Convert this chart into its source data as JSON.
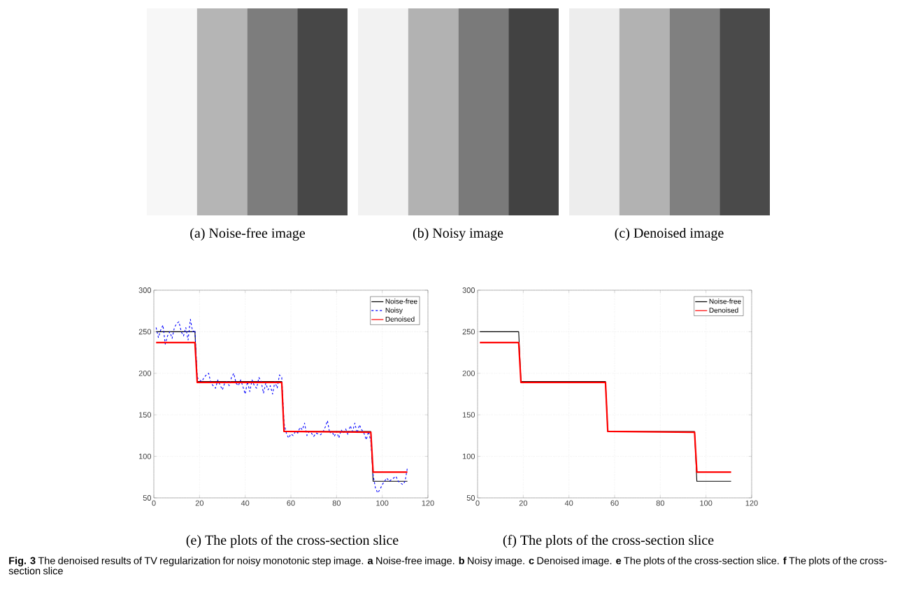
{
  "chart_data": [
    {
      "type": "line",
      "xlim": [
        0,
        120
      ],
      "ylim": [
        50,
        300
      ],
      "xticks": [
        0,
        20,
        40,
        60,
        80,
        100,
        120
      ],
      "yticks": [
        50,
        100,
        150,
        200,
        250,
        300
      ],
      "grid": true,
      "legend": "top right",
      "annotations": [
        "(a) Noise-free image",
        "(b) Noisy image",
        "(c) Denoised image",
        "(e) The plots of the cross-section slice"
      ],
      "series": [
        {
          "name": "Noise-free",
          "color": "#000000",
          "line_style": "solid",
          "x": [
            1,
            18,
            19,
            56,
            57,
            95,
            96,
            111
          ],
          "values": [
            250,
            250,
            190,
            190,
            130,
            130,
            70,
            70
          ]
        },
        {
          "name": "Noisy",
          "color": "#0000ff",
          "line_style": "dashed",
          "x": [
            1,
            2,
            3,
            4,
            5,
            6,
            7,
            8,
            9,
            10,
            11,
            12,
            13,
            14,
            15,
            16,
            17,
            18,
            19,
            20,
            21,
            22,
            23,
            24,
            25,
            26,
            27,
            28,
            29,
            30,
            31,
            32,
            33,
            34,
            35,
            36,
            37,
            38,
            39,
            40,
            41,
            42,
            43,
            44,
            45,
            46,
            47,
            48,
            49,
            50,
            51,
            52,
            53,
            54,
            55,
            56,
            57,
            58,
            59,
            60,
            61,
            62,
            63,
            64,
            65,
            66,
            67,
            68,
            69,
            70,
            71,
            72,
            73,
            74,
            75,
            76,
            77,
            78,
            79,
            80,
            81,
            82,
            83,
            84,
            85,
            86,
            87,
            88,
            89,
            90,
            91,
            92,
            93,
            94,
            95,
            96,
            97,
            98,
            99,
            100,
            101,
            102,
            103,
            104,
            105,
            106,
            107,
            108,
            109,
            110,
            111
          ],
          "values": [
            255,
            243,
            252,
            258,
            235,
            245,
            250,
            242,
            255,
            260,
            262,
            250,
            245,
            255,
            240,
            265,
            250,
            252,
            195,
            192,
            190,
            195,
            198,
            200,
            188,
            185,
            182,
            192,
            186,
            180,
            188,
            190,
            185,
            195,
            200,
            188,
            185,
            192,
            184,
            175,
            190,
            178,
            192,
            185,
            182,
            195,
            190,
            176,
            188,
            180,
            185,
            175,
            190,
            182,
            198,
            195,
            140,
            128,
            122,
            127,
            125,
            130,
            128,
            135,
            132,
            140,
            125,
            130,
            128,
            124,
            128,
            127,
            126,
            129,
            135,
            143,
            128,
            130,
            124,
            130,
            122,
            132,
            128,
            133,
            126,
            137,
            130,
            140,
            128,
            138,
            132,
            128,
            120,
            130,
            118,
            78,
            62,
            56,
            60,
            66,
            70,
            74,
            70,
            72,
            74,
            76,
            70,
            68,
            66,
            70,
            86
          ]
        },
        {
          "name": "Denoised",
          "color": "#ff0000",
          "line_style": "solid",
          "x": [
            1,
            18,
            19,
            56,
            57,
            95,
            96,
            111
          ],
          "values": [
            237,
            237,
            189,
            189,
            130,
            129,
            81,
            81
          ]
        }
      ]
    },
    {
      "type": "line",
      "xlim": [
        0,
        120
      ],
      "ylim": [
        50,
        300
      ],
      "xticks": [
        0,
        20,
        40,
        60,
        80,
        100,
        120
      ],
      "yticks": [
        50,
        100,
        150,
        200,
        250,
        300
      ],
      "grid": true,
      "legend": "top right",
      "annotations": [
        "(f) The plots of the cross-section slice",
        "**Fig. 3** The denoised results of TV regularization for noisy monotonic step image. **a** Noise-free image. **b** Noisy image. **c** Denoised image. **e** The plots of the cross-section slice. **f** The plots of the cross-section slice"
      ],
      "series": [
        {
          "name": "Noise-free",
          "color": "#000000",
          "line_style": "solid",
          "x": [
            1,
            18,
            19,
            56,
            57,
            95,
            96,
            111
          ],
          "values": [
            250,
            250,
            190,
            190,
            130,
            130,
            70,
            70
          ]
        },
        {
          "name": "Denoised",
          "color": "#ff0000",
          "line_style": "solid",
          "x": [
            1,
            18,
            19,
            56,
            57,
            95,
            96,
            111
          ],
          "values": [
            237,
            237,
            189,
            189,
            130,
            129,
            81,
            81
          ]
        }
      ]
    }
  ]
}
